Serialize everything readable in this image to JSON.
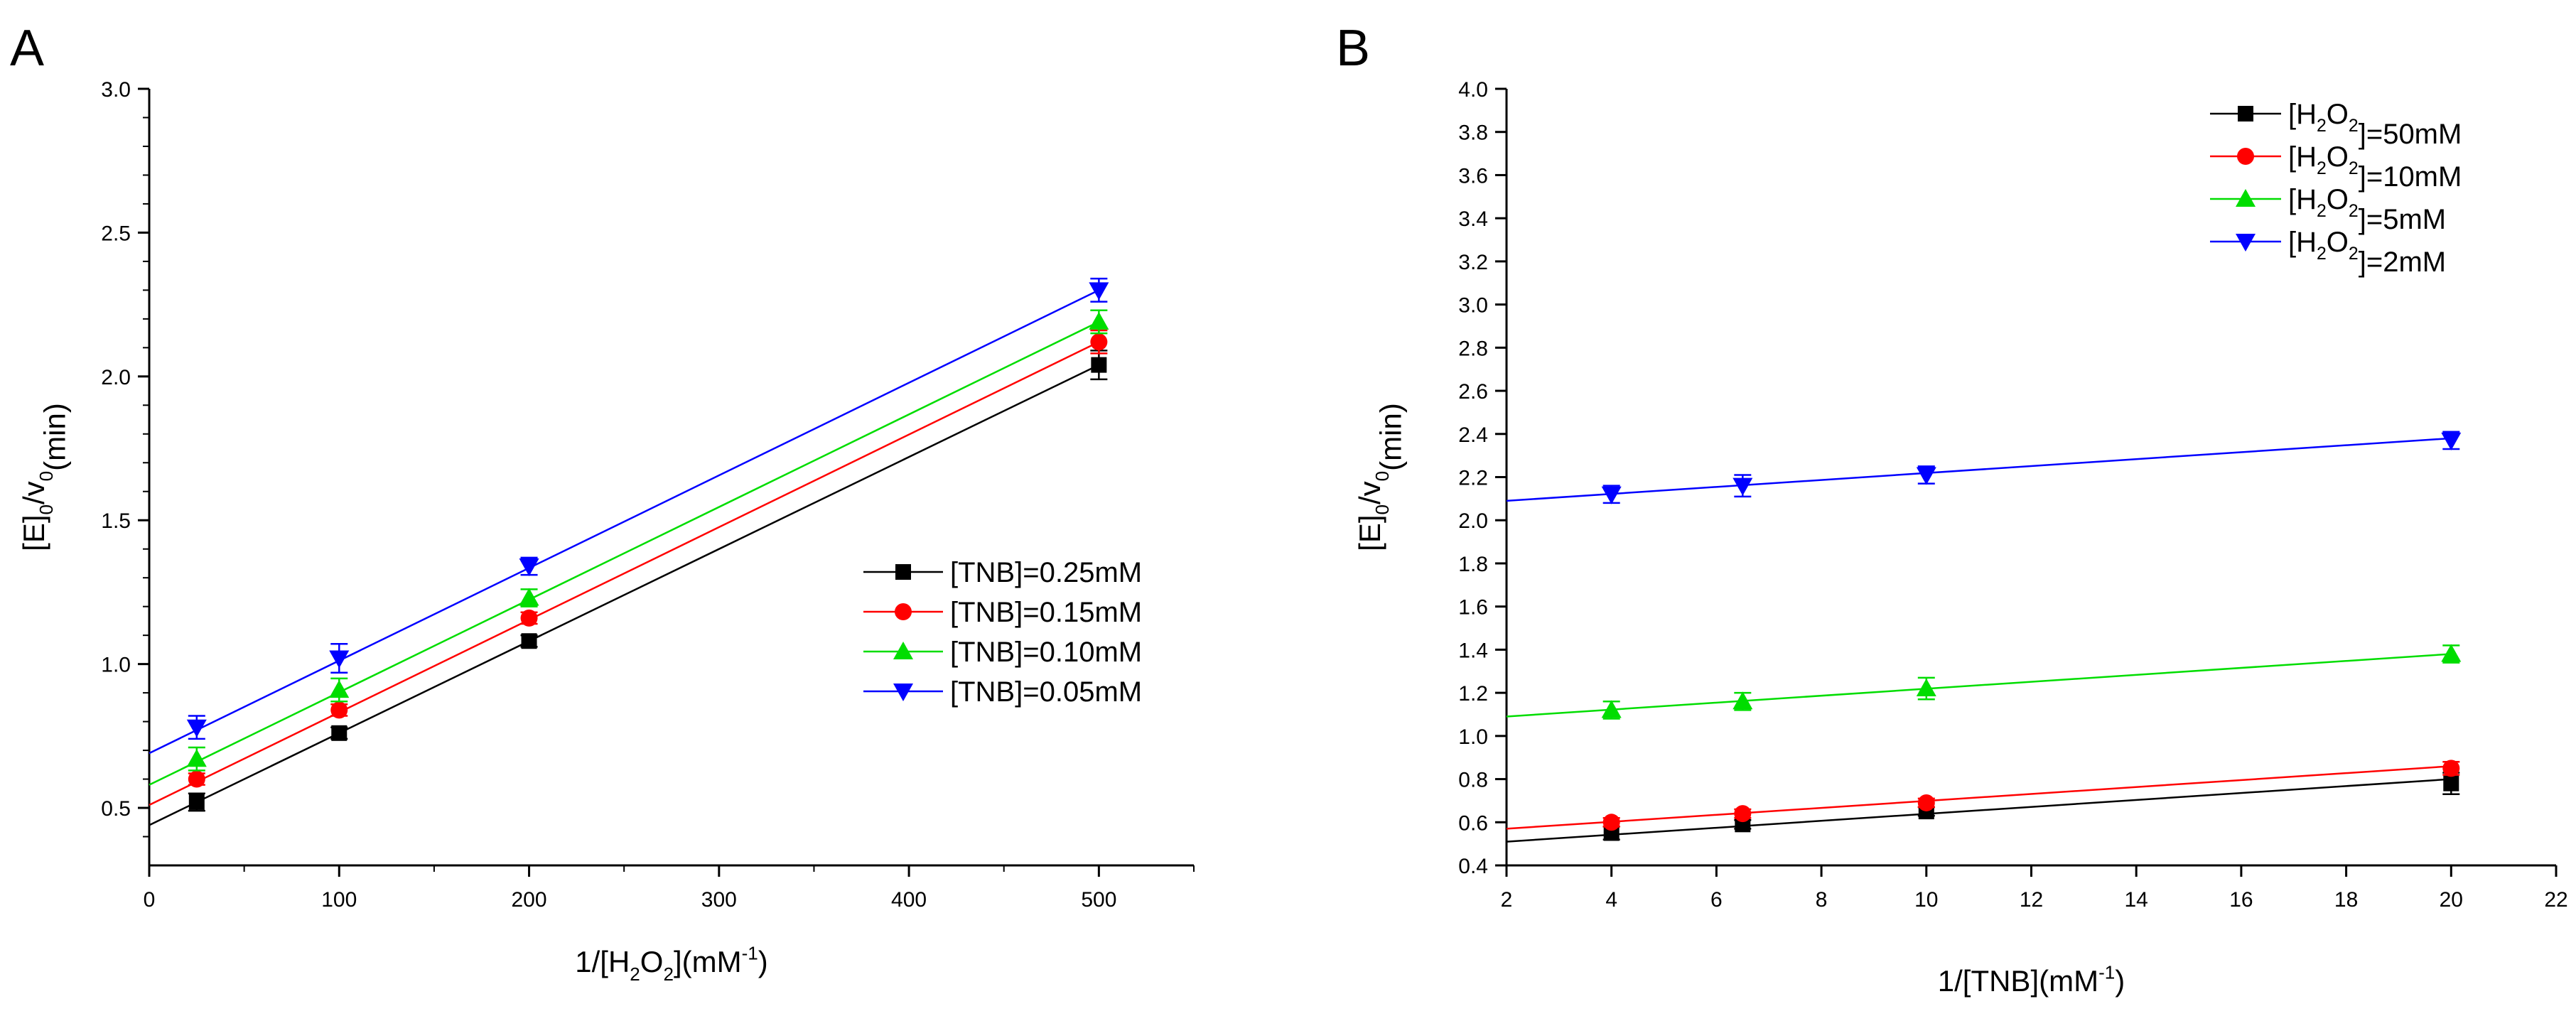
{
  "panels": [
    {
      "label": "A",
      "chart_data": {
        "type": "scatter",
        "title": "",
        "xlabel": {
          "base": "1/[H",
          "sub1": "2",
          "mid": "O",
          "sub2": "2",
          "close": "](mM",
          "sup": "-1",
          "end": ")"
        },
        "ylabel": {
          "base": "[E]",
          "sub1": "0",
          "mid": "/v",
          "sub2": "0",
          "end": "(min)"
        },
        "xlim": [
          0,
          550
        ],
        "ylim": [
          0.3,
          3.0
        ],
        "xticks": [
          0,
          100,
          200,
          300,
          400,
          500
        ],
        "xtick_labels": [
          "0",
          "100",
          "200",
          "300",
          "400",
          "500"
        ],
        "yticks": [
          0.5,
          1.0,
          1.5,
          2.0,
          2.5,
          3.0
        ],
        "ytick_labels": [
          "0.5",
          "1.0",
          "1.5",
          "2.0",
          "2.5",
          "3.0"
        ],
        "legend_position": "center-right",
        "series": [
          {
            "name": "[TNB]=0.25mM",
            "label": {
              "base": "[TNB]=0.25mM"
            },
            "color": "#000000",
            "marker": "square",
            "x": [
              25,
              100,
              200,
              500
            ],
            "y": [
              0.52,
              0.76,
              1.08,
              2.04
            ],
            "err": [
              0.03,
              0.02,
              0.02,
              0.05
            ],
            "fit": {
              "x": [
                0,
                500
              ],
              "y": [
                0.44,
                2.04
              ]
            }
          },
          {
            "name": "[TNB]=0.15mM",
            "label": {
              "base": "[TNB]=0.15mM"
            },
            "color": "#ff0000",
            "marker": "circle",
            "x": [
              25,
              100,
              200,
              500
            ],
            "y": [
              0.6,
              0.84,
              1.16,
              2.12
            ],
            "err": [
              0.02,
              0.02,
              0.02,
              0.04
            ],
            "fit": {
              "x": [
                0,
                500
              ],
              "y": [
                0.51,
                2.12
              ]
            }
          },
          {
            "name": "[TNB]=0.10mM",
            "label": {
              "base": "[TNB]=0.10mM"
            },
            "color": "#00dd00",
            "marker": "triangle-up",
            "x": [
              25,
              100,
              200,
              500
            ],
            "y": [
              0.67,
              0.91,
              1.23,
              2.19
            ],
            "err": [
              0.04,
              0.04,
              0.03,
              0.04
            ],
            "fit": {
              "x": [
                0,
                500
              ],
              "y": [
                0.58,
                2.19
              ]
            }
          },
          {
            "name": "[TNB]=0.05mM",
            "label": {
              "base": "[TNB]=0.05mM"
            },
            "color": "#0000ff",
            "marker": "triangle-down",
            "x": [
              25,
              100,
              200,
              500
            ],
            "y": [
              0.78,
              1.02,
              1.34,
              2.3
            ],
            "err": [
              0.04,
              0.05,
              0.03,
              0.04
            ],
            "fit": {
              "x": [
                0,
                500
              ],
              "y": [
                0.69,
                2.3
              ]
            }
          }
        ]
      }
    },
    {
      "label": "B",
      "chart_data": {
        "type": "scatter",
        "title": "",
        "xlabel": {
          "base": "1/[TNB](mM",
          "sup": "-1",
          "end": ")"
        },
        "ylabel": {
          "base": "[E]",
          "sub1": "0",
          "mid": "/v",
          "sub2": "0",
          "end": "(min)"
        },
        "xlim": [
          2,
          22
        ],
        "ylim": [
          0.4,
          4.0
        ],
        "xticks": [
          2,
          4,
          6,
          8,
          10,
          12,
          14,
          16,
          18,
          20,
          22
        ],
        "xtick_labels": [
          "2",
          "4",
          "6",
          "8",
          "10",
          "12",
          "14",
          "16",
          "18",
          "20",
          "22"
        ],
        "yticks": [
          0.4,
          0.6,
          0.8,
          1.0,
          1.2,
          1.4,
          1.6,
          1.8,
          2.0,
          2.2,
          2.4,
          2.6,
          2.8,
          3.0,
          3.2,
          3.4,
          3.6,
          3.8,
          4.0
        ],
        "ytick_labels": [
          "0.4",
          "0.6",
          "0.8",
          "1.0",
          "1.2",
          "1.4",
          "1.6",
          "1.8",
          "2.0",
          "2.2",
          "2.4",
          "2.6",
          "2.8",
          "3.0",
          "3.2",
          "3.4",
          "3.6",
          "3.8",
          "4.0"
        ],
        "legend_position": "top-right",
        "series": [
          {
            "name": "[H2O2]=50mM",
            "label": {
              "base": "[H",
              "sub1": "2",
              "mid": "O",
              "sub2": "2",
              "end": "]=50mM"
            },
            "color": "#000000",
            "marker": "square",
            "x": [
              4,
              6.5,
              10,
              20
            ],
            "y": [
              0.55,
              0.59,
              0.65,
              0.78
            ],
            "err": [
              0.03,
              0.02,
              0.02,
              0.05
            ],
            "fit": {
              "x": [
                2,
                20
              ],
              "y": [
                0.51,
                0.8
              ]
            }
          },
          {
            "name": "[H2O2]=10mM",
            "label": {
              "base": "[H",
              "sub1": "2",
              "mid": "O",
              "sub2": "2",
              "end": "]=10mM"
            },
            "color": "#ff0000",
            "marker": "circle",
            "x": [
              4,
              6.5,
              10,
              20
            ],
            "y": [
              0.6,
              0.64,
              0.69,
              0.85
            ],
            "err": [
              0.02,
              0.02,
              0.02,
              0.03
            ],
            "fit": {
              "x": [
                2,
                20
              ],
              "y": [
                0.57,
                0.86
              ]
            }
          },
          {
            "name": "[H2O2]=5mM",
            "label": {
              "base": "[H",
              "sub1": "2",
              "mid": "O",
              "sub2": "2",
              "end": "]=5mM"
            },
            "color": "#00dd00",
            "marker": "triangle-up",
            "x": [
              4,
              6.5,
              10,
              20
            ],
            "y": [
              1.12,
              1.16,
              1.22,
              1.38
            ],
            "err": [
              0.04,
              0.04,
              0.05,
              0.04
            ],
            "fit": {
              "x": [
                2,
                20
              ],
              "y": [
                1.09,
                1.38
              ]
            }
          },
          {
            "name": "[H2O2]=2mM",
            "label": {
              "base": "[H",
              "sub1": "2",
              "mid": "O",
              "sub2": "2",
              "end": "]=2mM"
            },
            "color": "#0000ff",
            "marker": "triangle-down",
            "x": [
              4,
              6.5,
              10,
              20
            ],
            "y": [
              2.12,
              2.16,
              2.21,
              2.37
            ],
            "err": [
              0.04,
              0.05,
              0.04,
              0.04
            ],
            "fit": {
              "x": [
                2,
                20
              ],
              "y": [
                2.09,
                2.38
              ]
            }
          }
        ]
      }
    }
  ]
}
